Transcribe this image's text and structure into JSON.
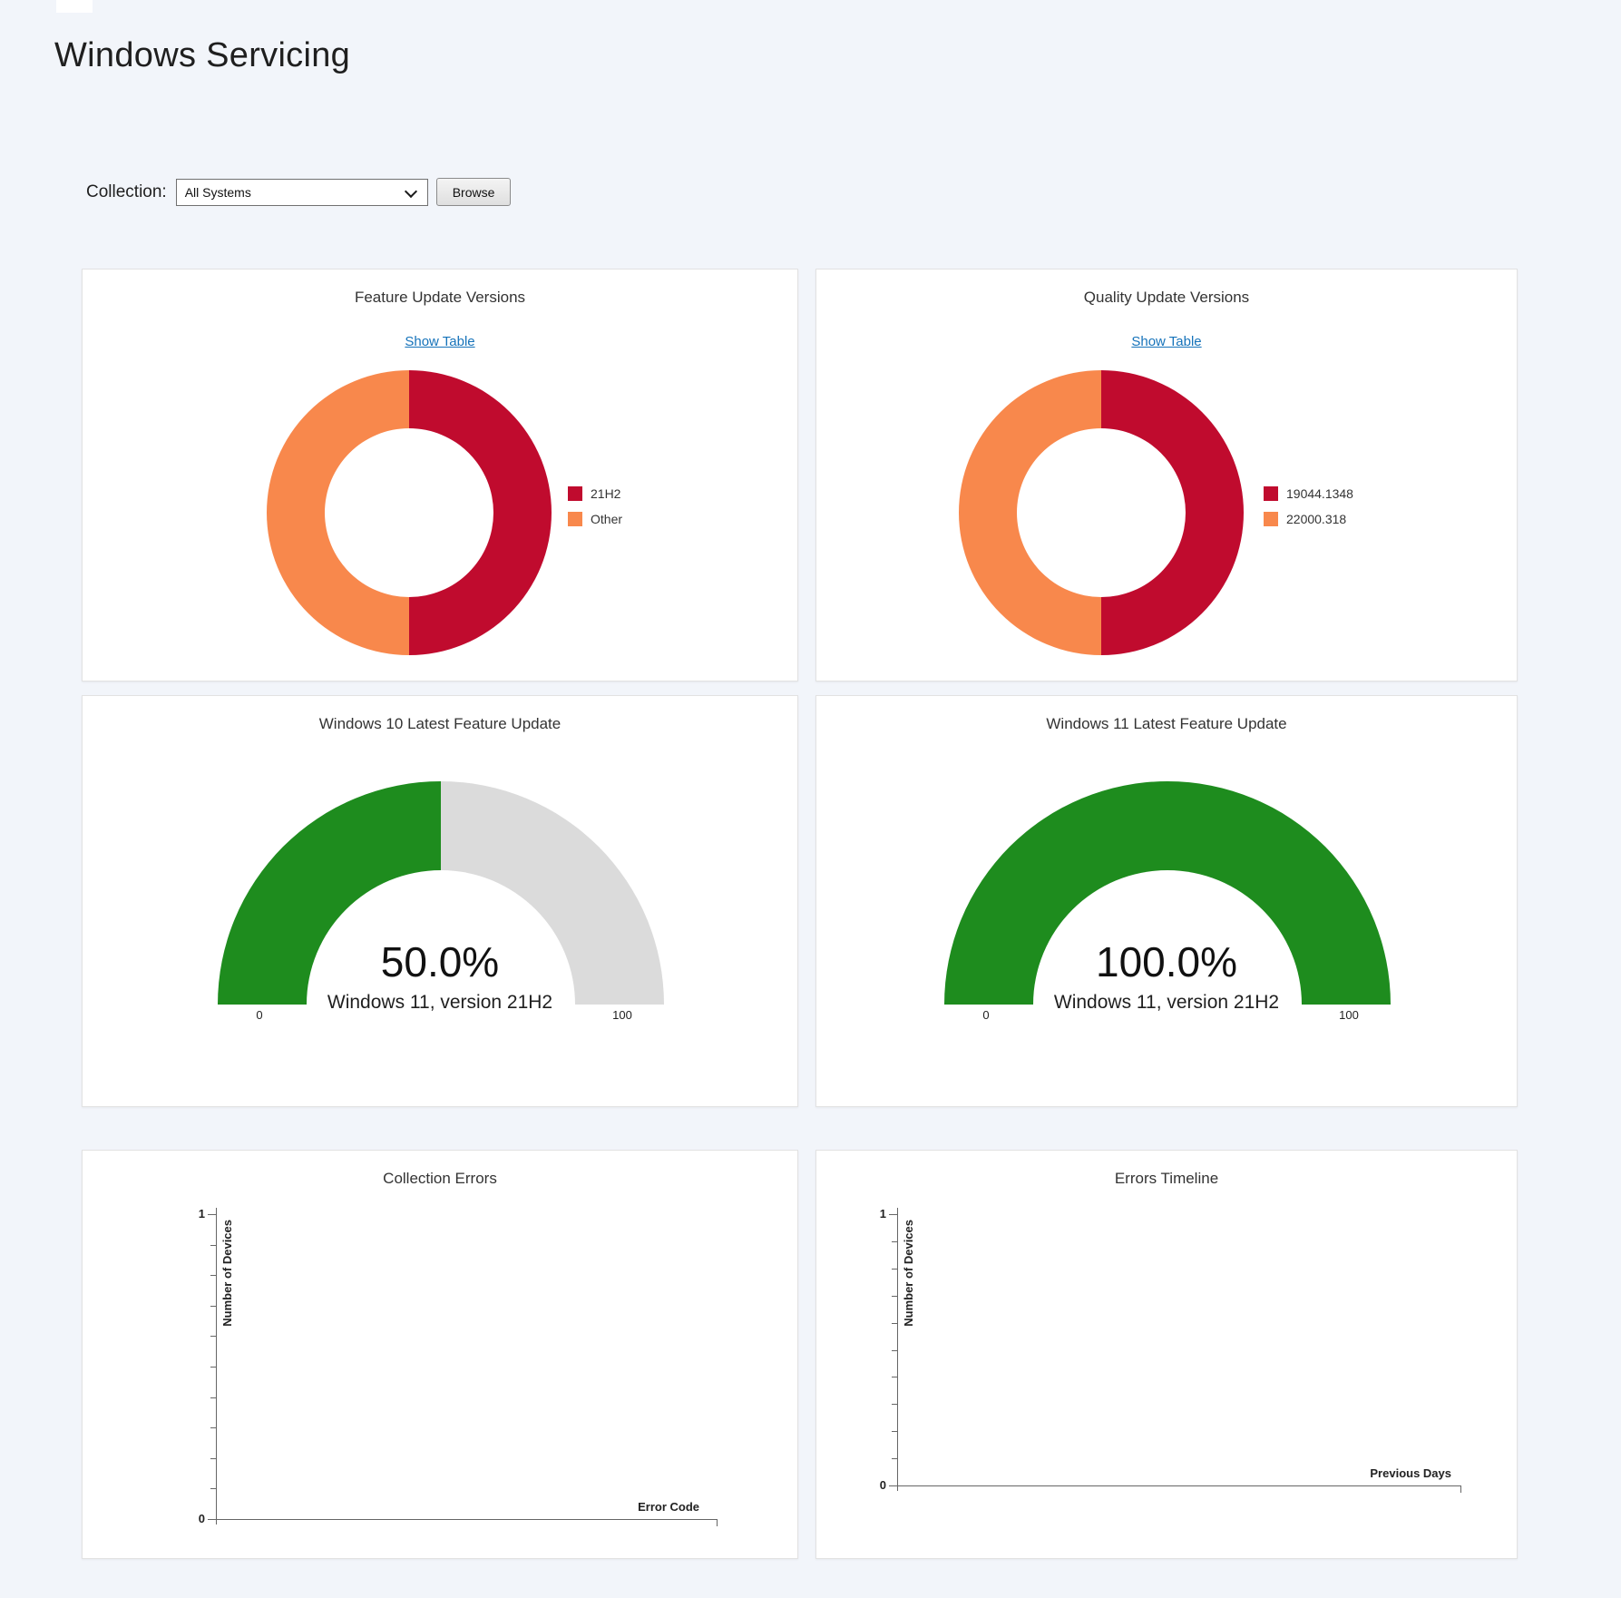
{
  "page": {
    "title": "Windows Servicing"
  },
  "collection_bar": {
    "label": "Collection:",
    "selected": "All Systems",
    "browse": "Browse"
  },
  "colors": {
    "red": "#C00B2E",
    "orange": "#F8884C",
    "green": "#1E8C1E",
    "track_gray": "#DBDBDB",
    "link_blue": "#1673BA",
    "page_background": "#F2F5FA"
  },
  "panels": {
    "feature_update": {
      "title": "Feature Update Versions",
      "link": "Show Table",
      "legend": [
        {
          "label": "21H2",
          "color": "#C00B2E"
        },
        {
          "label": "Other",
          "color": "#F8884C"
        }
      ]
    },
    "quality_update": {
      "title": "Quality Update Versions",
      "link": "Show Table",
      "legend": [
        {
          "label": "19044.1348",
          "color": "#C00B2E"
        },
        {
          "label": "22000.318",
          "color": "#F8884C"
        }
      ]
    },
    "win10_gauge": {
      "title": "Windows 10 Latest Feature Update",
      "value": "50.0%",
      "subtitle": "Windows 11, version 21H2",
      "min": "0",
      "max": "100"
    },
    "win11_gauge": {
      "title": "Windows 11 Latest Feature Update",
      "value": "100.0%",
      "subtitle": "Windows 11, version 21H2",
      "min": "0",
      "max": "100"
    },
    "collection_errors": {
      "title": "Collection Errors",
      "ylabel": "Number of Devices",
      "xlabel": "Error Code",
      "ymax": "1",
      "ymin": "0"
    },
    "errors_timeline": {
      "title": "Errors Timeline",
      "ylabel": "Number of Devices",
      "xlabel": "Previous Days",
      "ymax": "1",
      "ymin": "0"
    }
  },
  "chart_data": [
    {
      "id": "feature_update_versions",
      "type": "pie",
      "donut": true,
      "title": "Feature Update Versions",
      "labels": [
        "21H2",
        "Other"
      ],
      "values_percent": [
        50,
        50
      ],
      "colors": [
        "#C00B2E",
        "#F8884C"
      ],
      "legend_position": "right"
    },
    {
      "id": "quality_update_versions",
      "type": "pie",
      "donut": true,
      "title": "Quality Update Versions",
      "labels": [
        "19044.1348",
        "22000.318"
      ],
      "values_percent": [
        50,
        50
      ],
      "colors": [
        "#C00B2E",
        "#F8884C"
      ],
      "legend_position": "right"
    },
    {
      "id": "win10_feature_update",
      "type": "gauge",
      "title": "Windows 10 Latest Feature Update",
      "value_percent": 50.0,
      "display_value": "50.0%",
      "label": "Windows 11, version 21H2",
      "range": [
        0,
        100
      ],
      "fill_color": "#1E8C1E",
      "track_color": "#DBDBDB"
    },
    {
      "id": "win11_feature_update",
      "type": "gauge",
      "title": "Windows 11 Latest Feature Update",
      "value_percent": 100.0,
      "display_value": "100.0%",
      "label": "Windows 11, version 21H2",
      "range": [
        0,
        100
      ],
      "fill_color": "#1E8C1E",
      "track_color": "#DBDBDB"
    },
    {
      "id": "collection_errors",
      "type": "bar",
      "title": "Collection Errors",
      "xlabel": "Error Code",
      "ylabel": "Number of Devices",
      "ylim": [
        0,
        1
      ],
      "y_tick_count": 11,
      "categories": [],
      "values": []
    },
    {
      "id": "errors_timeline",
      "type": "bar",
      "title": "Errors Timeline",
      "xlabel": "Previous Days",
      "ylabel": "Number of Devices",
      "ylim": [
        0,
        1
      ],
      "y_tick_count": 11,
      "categories": [],
      "values": []
    }
  ]
}
